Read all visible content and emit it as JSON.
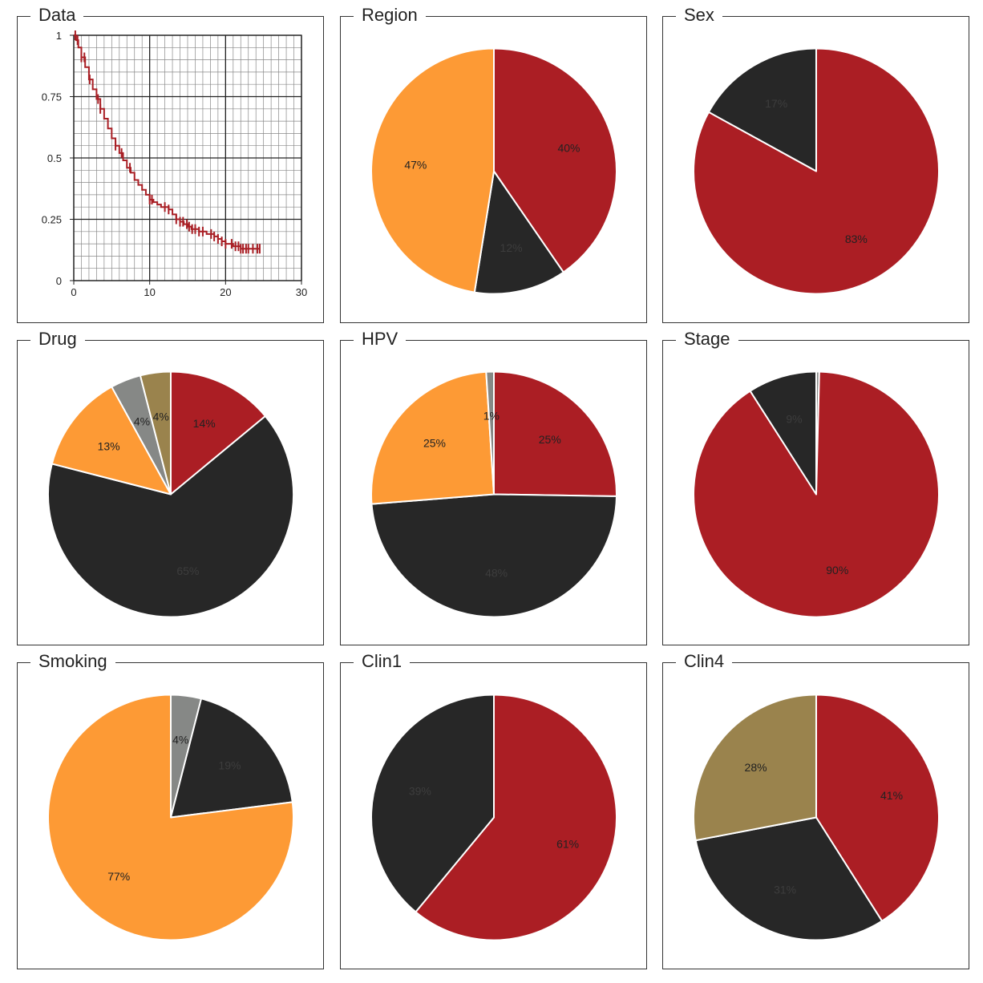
{
  "colors": {
    "red": "#ab1e24",
    "black": "#272727",
    "orange": "#fd9a35",
    "gray": "#868886",
    "olive": "#9a834d",
    "km_line": "#a81e24",
    "label_dark": "#222222",
    "label_on_black": "#3d3d3d"
  },
  "chart_data": [
    {
      "type": "line",
      "title": "Data",
      "xlim": [
        0,
        30
      ],
      "ylim": [
        0,
        1
      ],
      "x_ticks": [
        "0",
        "10",
        "20",
        "30"
      ],
      "y_ticks": [
        "0",
        "0.25",
        "0.5",
        "0.75",
        "1"
      ],
      "grid": true,
      "series": [
        {
          "x": [
            0,
            0.3,
            0.6,
            1.0,
            1.5,
            2.0,
            2.5,
            3.0,
            3.5,
            4.0,
            4.5,
            5.0,
            5.5,
            6.0,
            6.5,
            7.0,
            7.5,
            8.0,
            8.5,
            9.0,
            9.5,
            10.0,
            10.5,
            11.0,
            11.5,
            12.0,
            12.5,
            13.0,
            13.5,
            14.0,
            14.5,
            15.0,
            15.5,
            16.0,
            16.5,
            17.0,
            17.5,
            18.0,
            18.5,
            19.0,
            19.5,
            20.0,
            20.5,
            21.0,
            21.5,
            22.0,
            22.5,
            23.0,
            23.5,
            24.0,
            24.5
          ],
          "y": [
            1.0,
            0.98,
            0.95,
            0.91,
            0.87,
            0.82,
            0.78,
            0.74,
            0.7,
            0.66,
            0.62,
            0.58,
            0.55,
            0.52,
            0.49,
            0.46,
            0.44,
            0.41,
            0.39,
            0.37,
            0.35,
            0.33,
            0.32,
            0.31,
            0.3,
            0.3,
            0.29,
            0.27,
            0.25,
            0.24,
            0.23,
            0.22,
            0.21,
            0.21,
            0.2,
            0.2,
            0.19,
            0.19,
            0.18,
            0.17,
            0.16,
            0.15,
            0.15,
            0.14,
            0.14,
            0.13,
            0.13,
            0.13,
            0.13,
            0.13,
            0.13
          ],
          "censor_x": [
            0.2,
            0.5,
            1.0,
            1.4,
            2.1,
            3.2,
            3.5,
            5.5,
            6.3,
            7.4,
            10.0,
            10.3,
            12.0,
            12.5,
            13.5,
            14.0,
            14.4,
            14.9,
            15.2,
            15.6,
            16.0,
            16.5,
            17.0,
            18.1,
            18.5,
            19.0,
            19.5,
            20.0,
            20.8,
            21.3,
            21.7,
            22.0,
            22.3,
            22.7,
            23.0,
            23.6,
            24.2,
            24.5
          ]
        }
      ]
    },
    {
      "type": "pie",
      "title": "Region",
      "values": [
        40,
        12,
        47
      ],
      "labels": [
        "40%",
        "12%",
        "47%"
      ],
      "colors": [
        "red",
        "black",
        "orange"
      ]
    },
    {
      "type": "pie",
      "title": "Sex",
      "values": [
        83,
        17
      ],
      "labels": [
        "83%",
        "17%"
      ],
      "colors": [
        "red",
        "black"
      ]
    },
    {
      "type": "pie",
      "title": "Drug",
      "values": [
        14,
        65,
        13,
        4,
        4
      ],
      "labels": [
        "14%",
        "65%",
        "13%",
        "4%",
        "4%"
      ],
      "colors": [
        "red",
        "black",
        "orange",
        "gray",
        "olive"
      ]
    },
    {
      "type": "pie",
      "title": "HPV",
      "values": [
        25,
        48,
        25,
        1
      ],
      "labels": [
        "25%",
        "48%",
        "25%",
        "1%"
      ],
      "colors": [
        "red",
        "black",
        "orange",
        "gray"
      ]
    },
    {
      "type": "pie",
      "title": "Stage",
      "values": [
        0.4,
        90,
        9
      ],
      "labels": [
        "",
        "90%",
        "9%"
      ],
      "colors": [
        "gray",
        "red",
        "black"
      ]
    },
    {
      "type": "pie",
      "title": "Smoking",
      "values": [
        4,
        19,
        77
      ],
      "labels": [
        "4%",
        "19%",
        "77%"
      ],
      "colors": [
        "gray",
        "black",
        "orange"
      ]
    },
    {
      "type": "pie",
      "title": "Clin1",
      "values": [
        61,
        39
      ],
      "labels": [
        "61%",
        "39%"
      ],
      "colors": [
        "red",
        "black"
      ]
    },
    {
      "type": "pie",
      "title": "Clin4",
      "values": [
        41,
        31,
        28
      ],
      "labels": [
        "41%",
        "31%",
        "28%"
      ],
      "colors": [
        "red",
        "black",
        "olive"
      ]
    }
  ]
}
